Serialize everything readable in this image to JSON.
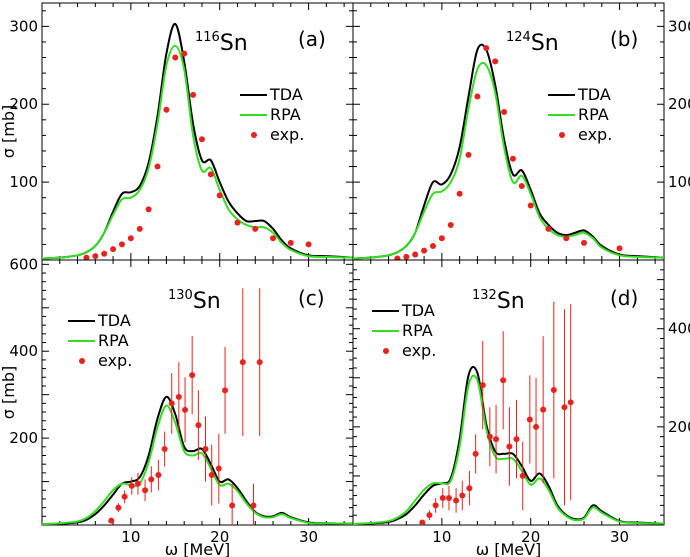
{
  "chart_data": [
    {
      "type": "line",
      "panel": "(a)",
      "nucleus": {
        "mass": "116",
        "element": "Sn"
      },
      "xlabel": "",
      "ylabel": "σ [mb]",
      "xlim": [
        0,
        35
      ],
      "ylim": [
        0,
        330
      ],
      "yticks": [
        100,
        200,
        300
      ],
      "y_axis_side": "left",
      "legend": {
        "placement": "middle-right",
        "entries": [
          "TDA",
          "RPA",
          "exp."
        ]
      },
      "series": [
        {
          "name": "TDA",
          "color": "#000000",
          "x": [
            0,
            2,
            4,
            5,
            6,
            7,
            8,
            9,
            10,
            11,
            12,
            13,
            14,
            15,
            16,
            17,
            18,
            19,
            20,
            21,
            22,
            23,
            24,
            25,
            26,
            27,
            28,
            30,
            32,
            35
          ],
          "y": [
            2,
            3,
            6,
            10,
            18,
            35,
            62,
            85,
            87,
            95,
            125,
            185,
            265,
            303,
            255,
            175,
            128,
            128,
            100,
            75,
            60,
            50,
            50,
            50,
            40,
            25,
            15,
            6,
            5,
            3
          ]
        },
        {
          "name": "RPA",
          "color": "#33dd22",
          "x": [
            0,
            2,
            4,
            5,
            6,
            7,
            8,
            9,
            10,
            11,
            12,
            13,
            14,
            15,
            16,
            17,
            18,
            19,
            20,
            21,
            22,
            23,
            24,
            25,
            26,
            27,
            28,
            30,
            32,
            35
          ],
          "y": [
            2,
            3,
            6,
            10,
            18,
            35,
            58,
            78,
            80,
            90,
            118,
            175,
            250,
            275,
            245,
            160,
            115,
            118,
            90,
            65,
            52,
            45,
            42,
            42,
            35,
            22,
            13,
            5,
            4,
            3
          ]
        },
        {
          "name": "exp.",
          "color": "#e8231d",
          "marker": "dot",
          "x": [
            5,
            6,
            7,
            8,
            9,
            10,
            11,
            12,
            13,
            14,
            15,
            16,
            17,
            18,
            19,
            20,
            22,
            24,
            26,
            28,
            30
          ],
          "y": [
            3,
            5,
            8,
            14,
            20,
            28,
            40,
            65,
            120,
            193,
            260,
            265,
            212,
            155,
            110,
            83,
            48,
            40,
            28,
            22,
            20
          ]
        }
      ]
    },
    {
      "type": "line",
      "panel": "(b)",
      "nucleus": {
        "mass": "124",
        "element": "Sn"
      },
      "xlabel": "",
      "ylabel": "",
      "xlim": [
        0,
        35
      ],
      "ylim": [
        0,
        330
      ],
      "yticks": [
        100,
        200,
        300
      ],
      "y_axis_side": "right",
      "legend": {
        "placement": "middle-right",
        "entries": [
          "TDA",
          "RPA",
          "exp."
        ]
      },
      "series": [
        {
          "name": "TDA",
          "color": "#000000",
          "x": [
            0,
            2,
            4,
            5,
            6,
            7,
            8,
            9,
            10,
            11,
            12,
            13,
            14,
            15,
            16,
            17,
            18,
            19,
            20,
            21,
            22,
            23,
            24,
            25,
            26,
            27,
            28,
            30,
            32,
            35
          ],
          "y": [
            2,
            3,
            6,
            10,
            18,
            35,
            70,
            100,
            97,
            110,
            145,
            210,
            270,
            270,
            225,
            155,
            110,
            115,
            90,
            60,
            45,
            35,
            32,
            35,
            38,
            30,
            18,
            7,
            5,
            3
          ]
        },
        {
          "name": "RPA",
          "color": "#33dd22",
          "x": [
            0,
            2,
            4,
            5,
            6,
            7,
            8,
            9,
            10,
            11,
            12,
            13,
            14,
            15,
            16,
            17,
            18,
            19,
            20,
            21,
            22,
            23,
            24,
            25,
            26,
            27,
            28,
            30,
            32,
            35
          ],
          "y": [
            2,
            3,
            6,
            10,
            18,
            35,
            62,
            85,
            88,
            100,
            130,
            195,
            245,
            250,
            215,
            145,
            100,
            108,
            85,
            55,
            40,
            32,
            30,
            32,
            35,
            28,
            16,
            6,
            4,
            3
          ]
        },
        {
          "name": "exp.",
          "color": "#e8231d",
          "marker": "dot",
          "x": [
            5,
            6,
            7,
            8,
            9,
            10,
            11,
            12,
            13,
            14,
            15,
            16,
            17,
            18,
            19,
            20,
            22,
            24,
            26,
            30
          ],
          "y": [
            2,
            4,
            7,
            12,
            18,
            28,
            45,
            85,
            135,
            210,
            272,
            255,
            190,
            130,
            95,
            70,
            40,
            28,
            22,
            15
          ]
        }
      ]
    },
    {
      "type": "line",
      "panel": "(c)",
      "nucleus": {
        "mass": "130",
        "element": "Sn"
      },
      "xlabel": "ω [MeV]",
      "ylabel": "σ [mb]",
      "xlim": [
        0,
        35
      ],
      "ylim": [
        0,
        610
      ],
      "xticks": [
        10,
        20,
        30
      ],
      "yticks": [
        200,
        400,
        600
      ],
      "y_axis_side": "left",
      "legend": {
        "placement": "upper-left",
        "entries": [
          "TDA",
          "RPA",
          "exp."
        ]
      },
      "series": [
        {
          "name": "TDA",
          "color": "#000000",
          "x": [
            0,
            2,
            4,
            5,
            6,
            7,
            8,
            9,
            10,
            11,
            12,
            13,
            14,
            15,
            16,
            17,
            18,
            19,
            20,
            21,
            22,
            23,
            24,
            25,
            26,
            27,
            28,
            30,
            32,
            35
          ],
          "y": [
            2,
            3,
            6,
            12,
            25,
            45,
            70,
            95,
            100,
            110,
            160,
            245,
            295,
            255,
            180,
            170,
            175,
            140,
            100,
            105,
            85,
            55,
            30,
            20,
            20,
            28,
            18,
            6,
            4,
            3
          ]
        },
        {
          "name": "RPA",
          "color": "#33dd22",
          "x": [
            0,
            2,
            4,
            5,
            6,
            7,
            8,
            9,
            10,
            11,
            12,
            13,
            14,
            15,
            16,
            17,
            18,
            19,
            20,
            21,
            22,
            23,
            24,
            25,
            26,
            27,
            28,
            30,
            32,
            35
          ],
          "y": [
            2,
            4,
            8,
            16,
            32,
            55,
            80,
            95,
            92,
            95,
            145,
            225,
            275,
            235,
            170,
            160,
            165,
            130,
            92,
            95,
            78,
            50,
            28,
            18,
            18,
            25,
            16,
            5,
            4,
            3
          ]
        },
        {
          "name": "exp.",
          "color": "#e8231d",
          "marker": "dot",
          "x": [
            7.8,
            8.6,
            9.3,
            10.1,
            10.8,
            11.6,
            12.3,
            13.1,
            13.8,
            14.6,
            15.4,
            16.1,
            16.9,
            17.6,
            18.4,
            19.1,
            19.9,
            20.6,
            21.4,
            22.6,
            23.8,
            24.5
          ],
          "y": [
            10,
            40,
            65,
            90,
            95,
            80,
            105,
            115,
            175,
            280,
            295,
            265,
            345,
            230,
            175,
            115,
            130,
            310,
            45,
            375,
            45,
            375
          ],
          "err": [
            5,
            10,
            15,
            20,
            25,
            25,
            30,
            35,
            40,
            70,
            80,
            75,
            90,
            80,
            75,
            70,
            80,
            100,
            50,
            170,
            50,
            170
          ]
        }
      ]
    },
    {
      "type": "line",
      "panel": "(d)",
      "nucleus": {
        "mass": "132",
        "element": "Sn"
      },
      "xlabel": "ω [MeV]",
      "ylabel": "",
      "xlim": [
        0,
        35
      ],
      "ylim": [
        0,
        540
      ],
      "xticks": [
        10,
        20,
        30
      ],
      "yticks": [
        200,
        400
      ],
      "y_axis_side": "right",
      "legend": {
        "placement": "upper-left",
        "entries": [
          "TDA",
          "RPA",
          "exp."
        ]
      },
      "series": [
        {
          "name": "TDA",
          "color": "#000000",
          "x": [
            0,
            2,
            4,
            5,
            6,
            7,
            8,
            9,
            10,
            11,
            12,
            13,
            14,
            15,
            16,
            17,
            18,
            19,
            20,
            21,
            22,
            23,
            24,
            25,
            26,
            27,
            28,
            30,
            32,
            35
          ],
          "y": [
            2,
            3,
            6,
            12,
            22,
            40,
            62,
            80,
            85,
            95,
            175,
            305,
            310,
            205,
            150,
            145,
            145,
            120,
            90,
            105,
            80,
            40,
            20,
            12,
            15,
            40,
            28,
            8,
            5,
            3
          ]
        },
        {
          "name": "RPA",
          "color": "#33dd22",
          "x": [
            0,
            2,
            4,
            5,
            6,
            7,
            8,
            9,
            10,
            11,
            12,
            13,
            14,
            15,
            16,
            17,
            18,
            19,
            20,
            21,
            22,
            23,
            24,
            25,
            26,
            27,
            28,
            30,
            32,
            35
          ],
          "y": [
            2,
            4,
            8,
            15,
            28,
            50,
            72,
            85,
            85,
            90,
            160,
            285,
            295,
            195,
            140,
            135,
            135,
            110,
            82,
            95,
            72,
            36,
            18,
            10,
            13,
            36,
            25,
            7,
            4,
            3
          ]
        },
        {
          "name": "exp.",
          "color": "#e8231d",
          "marker": "dot",
          "x": [
            7.8,
            8.6,
            9.3,
            10.1,
            10.8,
            11.6,
            12.3,
            13.1,
            13.8,
            14.6,
            15.4,
            16.1,
            16.9,
            17.6,
            18.4,
            19.1,
            19.9,
            20.6,
            21.4,
            22.6,
            23.8,
            24.5
          ],
          "y": [
            5,
            20,
            40,
            55,
            55,
            50,
            60,
            75,
            145,
            285,
            180,
            175,
            295,
            160,
            175,
            100,
            215,
            200,
            235,
            275,
            240,
            250
          ],
          "err": [
            5,
            10,
            15,
            20,
            25,
            25,
            30,
            35,
            40,
            90,
            60,
            70,
            100,
            80,
            80,
            70,
            90,
            100,
            150,
            180,
            200,
            200
          ]
        }
      ]
    }
  ]
}
